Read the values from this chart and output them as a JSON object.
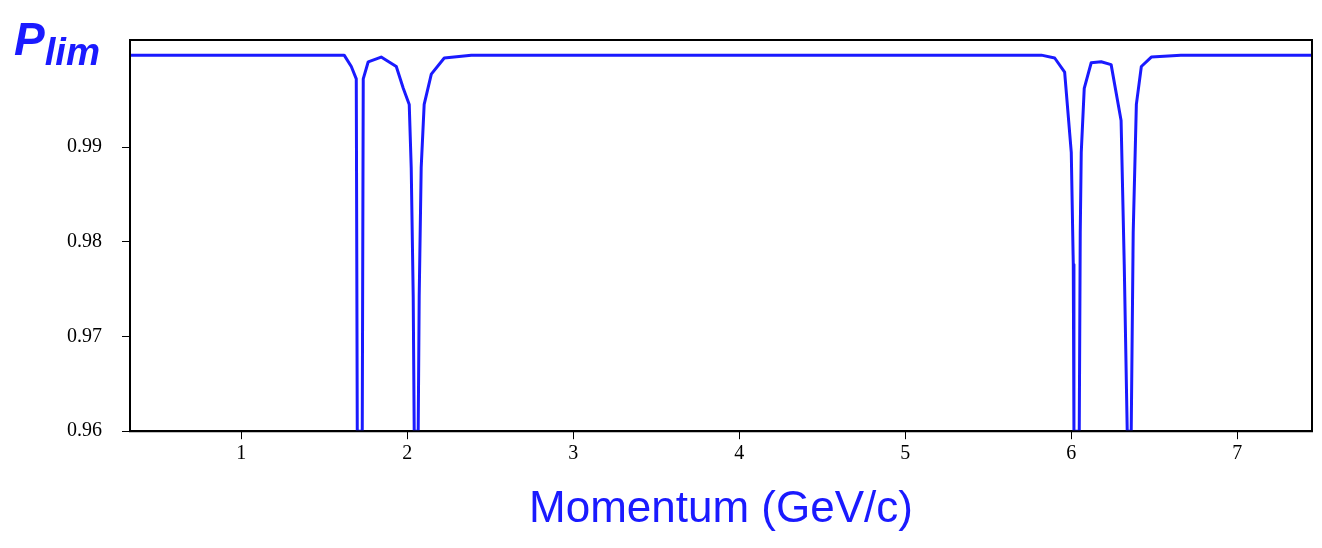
{
  "chart_data": {
    "type": "line",
    "xlabel": "Momentum (GeV/c)",
    "ylabel": "P$_{lim}$",
    "xlim": [
      0.33,
      7.45
    ],
    "xticks": [
      1,
      2,
      3,
      4,
      5,
      6,
      7
    ],
    "ylim": [
      0.96,
      1.0013
    ],
    "yticks": [
      0.96,
      0.97,
      0.98,
      0.99
    ],
    "grid": false,
    "legend": false,
    "marker": "none",
    "line_style": "solid",
    "series": [
      {
        "color": "#1a1aff",
        "x": [
          0.33,
          1.62,
          1.663,
          1.693,
          1.699,
          1.729,
          1.735,
          1.765,
          1.843,
          1.934,
          1.976,
          2.012,
          2.024,
          2.036,
          2.042,
          2.066,
          2.072,
          2.084,
          2.102,
          2.145,
          2.223,
          2.386,
          5.82,
          5.9,
          5.96,
          6.0,
          6.012,
          6.016,
          6.048,
          6.054,
          6.06,
          6.078,
          6.12,
          6.18,
          6.24,
          6.3,
          6.319,
          6.337,
          6.361,
          6.373,
          6.392,
          6.422,
          6.482,
          6.66,
          7.45
        ],
        "values": [
          0.9997,
          0.9997,
          0.9985,
          0.9972,
          0.96,
          0.96,
          0.9972,
          0.999,
          0.9995,
          0.9985,
          0.9962,
          0.9945,
          0.9878,
          0.9742,
          0.96,
          0.96,
          0.9742,
          0.9878,
          0.9945,
          0.9977,
          0.9994,
          0.9997,
          0.9997,
          0.9994,
          0.9979,
          0.9894,
          0.9776,
          0.96,
          0.96,
          0.981,
          0.9894,
          0.9962,
          0.9989,
          0.999,
          0.9987,
          0.9928,
          0.9776,
          0.96,
          0.96,
          0.981,
          0.9945,
          0.9985,
          0.9995,
          0.9997,
          0.9997
        ]
      }
    ]
  }
}
